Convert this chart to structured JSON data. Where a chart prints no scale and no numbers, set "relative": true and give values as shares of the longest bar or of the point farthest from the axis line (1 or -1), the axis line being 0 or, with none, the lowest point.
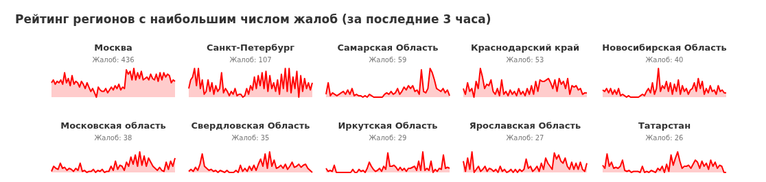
{
  "chart_data": [
    {
      "type": "other",
      "title": "Рейтинг регионов с наибольшим числом жалоб (за последние 3 часа)"
    },
    {
      "type": "area",
      "title": "Москва",
      "subtitle": "Жалоб: 436",
      "relative": true,
      "color": "#ff0000",
      "categories": [
        null,
        null,
        null,
        null,
        null,
        null,
        null,
        null,
        null,
        null,
        null,
        null,
        null,
        null,
        null,
        null,
        null,
        null,
        null,
        null,
        null,
        null,
        null,
        null,
        null,
        null,
        null,
        null,
        null,
        null,
        null,
        null,
        null,
        null,
        null,
        null,
        null,
        null,
        null,
        null,
        null,
        null,
        null,
        null,
        null,
        null,
        null,
        null,
        null,
        null,
        null,
        null,
        null,
        null,
        null,
        null,
        null,
        null,
        null,
        null,
        null,
        null,
        null,
        null,
        null,
        null,
        null
      ],
      "values": [
        0.5,
        0.6,
        0.45,
        0.55,
        0.5,
        0.6,
        0.45,
        0.85,
        0.5,
        0.65,
        0.4,
        0.75,
        0.45,
        0.55,
        0.5,
        0.35,
        0.55,
        0.45,
        0.3,
        0.5,
        0.35,
        0.2,
        0.3,
        0.15,
        0,
        0.35,
        0.25,
        0.2,
        0.2,
        0.3,
        0.15,
        0.25,
        0.35,
        0.25,
        0.4,
        0.3,
        0.45,
        0.25,
        0.35,
        0.3,
        0.95,
        0.8,
        0.9,
        0.6,
        1,
        0.6,
        0.85,
        0.65,
        0.9,
        0.6,
        0.65,
        0.7,
        0.6,
        0.8,
        0.65,
        0.6,
        0.8,
        0.55,
        0.85,
        0.6,
        0.85,
        0.7,
        0.8,
        0.75,
        0.5,
        0.6,
        0.55
      ]
    },
    {
      "type": "area",
      "title": "Санкт-Петербург",
      "subtitle": "Жалоб: 107",
      "relative": true,
      "color": "#ff0000",
      "categories": [
        null,
        null,
        null,
        null,
        null,
        null,
        null,
        null,
        null,
        null,
        null,
        null,
        null,
        null,
        null,
        null,
        null,
        null,
        null,
        null,
        null,
        null,
        null,
        null,
        null,
        null,
        null,
        null,
        null,
        null,
        null,
        null,
        null,
        null,
        null,
        null,
        null,
        null,
        null,
        null,
        null,
        null,
        null,
        null,
        null,
        null,
        null,
        null,
        null,
        null,
        null,
        null,
        null,
        null,
        null,
        null,
        null,
        null,
        null,
        null,
        null,
        null,
        null,
        null,
        null
      ],
      "values": [
        0.3,
        0.6,
        0.7,
        1,
        0.4,
        1,
        0.3,
        0.6,
        0.1,
        0.2,
        0.6,
        0.2,
        0.5,
        0.1,
        0.4,
        0.2,
        0.3,
        0.85,
        0.15,
        0.3,
        0.2,
        0.05,
        0.2,
        0.1,
        0.3,
        0.05,
        0.1,
        0.1,
        0,
        0.05,
        0.3,
        0.1,
        0.4,
        0.25,
        0.7,
        0.3,
        0.75,
        0.4,
        0.85,
        0.3,
        0.9,
        0.2,
        0.75,
        0.3,
        0.5,
        0.2,
        0.6,
        0.1,
        0.8,
        0.3,
        1,
        0.2,
        1,
        0.15,
        0.7,
        0.3,
        0.9,
        0,
        0.75,
        0.2,
        0.65,
        0.3,
        0.5,
        0.25,
        0.5
      ]
    },
    {
      "type": "area",
      "title": "Самарская Область",
      "subtitle": "Жалоб: 59",
      "relative": true,
      "color": "#ff0000",
      "categories": [
        null,
        null,
        null,
        null,
        null,
        null,
        null,
        null,
        null,
        null,
        null,
        null,
        null,
        null,
        null,
        null,
        null,
        null,
        null,
        null,
        null,
        null,
        null,
        null,
        null,
        null,
        null,
        null,
        null,
        null,
        null,
        null,
        null,
        null,
        null,
        null,
        null,
        null,
        null,
        null,
        null,
        null,
        null,
        null,
        null,
        null,
        null,
        null,
        null,
        null,
        null,
        null,
        null,
        null,
        null,
        null,
        null,
        null
      ],
      "values": [
        0.1,
        0.5,
        0.05,
        0.15,
        0.1,
        0.05,
        0.1,
        0.15,
        0.2,
        0.1,
        0.25,
        0.1,
        0.3,
        0.05,
        0.1,
        0.05,
        0.05,
        0,
        0.05,
        0,
        0.1,
        0.05,
        0,
        0,
        0,
        0,
        0,
        0.1,
        0.15,
        0.1,
        0.2,
        0.1,
        0.15,
        0.3,
        0.1,
        0.2,
        0.35,
        0.25,
        0.4,
        0.3,
        0.4,
        0.2,
        0.25,
        0.1,
        0.95,
        0.2,
        0.15,
        0.3,
        1,
        0.85,
        0.6,
        0.3,
        0.25,
        0.2,
        0.3,
        0.15,
        0.25,
        0.05
      ]
    },
    {
      "type": "area",
      "title": "Краснодарский край",
      "subtitle": "Жалоб: 53",
      "relative": true,
      "color": "#ff0000",
      "categories": [
        null,
        null,
        null,
        null,
        null,
        null,
        null,
        null,
        null,
        null,
        null,
        null,
        null,
        null,
        null,
        null,
        null,
        null,
        null,
        null,
        null,
        null,
        null,
        null,
        null,
        null,
        null,
        null,
        null,
        null,
        null,
        null,
        null,
        null,
        null,
        null,
        null,
        null,
        null,
        null,
        null,
        null,
        null,
        null,
        null,
        null,
        null,
        null,
        null,
        null,
        null,
        null,
        null,
        null,
        null,
        null,
        null,
        null,
        null
      ],
      "values": [
        0.3,
        0.1,
        0.5,
        0.2,
        0.3,
        0,
        0.55,
        0.3,
        1,
        0.7,
        0.3,
        0.45,
        0.4,
        0.6,
        0.2,
        0.1,
        0.3,
        0.05,
        0.6,
        0.1,
        0.2,
        0.05,
        0.25,
        0.1,
        0.2,
        0.05,
        0.3,
        0.1,
        0.2,
        0.05,
        0.3,
        0.1,
        0.4,
        0.1,
        0.55,
        0.2,
        0.6,
        0.55,
        0.55,
        0.6,
        0.65,
        0.5,
        0.3,
        0.6,
        0.2,
        0.65,
        0.45,
        0.55,
        0.3,
        0.65,
        0.1,
        0.4,
        0.35,
        0.4,
        0.25,
        0.3,
        0.1,
        0.15,
        0.15
      ]
    },
    {
      "type": "area",
      "title": "Новосибирская Область",
      "subtitle": "Жалоб: 40",
      "relative": true,
      "color": "#ff0000",
      "categories": [
        null,
        null,
        null,
        null,
        null,
        null,
        null,
        null,
        null,
        null,
        null,
        null,
        null,
        null,
        null,
        null,
        null,
        null,
        null,
        null,
        null,
        null,
        null,
        null,
        null,
        null,
        null,
        null,
        null,
        null,
        null,
        null,
        null,
        null,
        null,
        null,
        null,
        null,
        null,
        null,
        null,
        null,
        null,
        null,
        null,
        null,
        null,
        null,
        null,
        null,
        null,
        null,
        null,
        null,
        null,
        null,
        null,
        null,
        null,
        null,
        null,
        null,
        null
      ],
      "values": [
        0.25,
        0.2,
        0.3,
        0.15,
        0.3,
        0.1,
        0.25,
        0.1,
        0.3,
        0.05,
        0.1,
        0.05,
        0,
        0.05,
        0,
        0,
        0,
        0,
        0,
        0.05,
        0.1,
        0.05,
        0.2,
        0.3,
        0.15,
        0.5,
        0.1,
        0.3,
        1,
        0.2,
        0.4,
        0.3,
        0.55,
        0.2,
        0.5,
        0.1,
        0.45,
        0.2,
        0.6,
        0.1,
        0.4,
        0.2,
        0.3,
        0.1,
        0.25,
        0.3,
        0.5,
        0.2,
        0.65,
        0.3,
        0.55,
        0.1,
        0.3,
        0.15,
        0.4,
        0.2,
        0.25,
        0.1,
        0.4,
        0.2,
        0.25,
        0.15,
        0.15
      ]
    },
    {
      "type": "area",
      "title": "Московская область",
      "subtitle": "Жалоб: 38",
      "relative": true,
      "color": "#ff0000",
      "categories": [
        null,
        null,
        null,
        null,
        null,
        null,
        null,
        null,
        null,
        null,
        null,
        null,
        null,
        null,
        null,
        null,
        null,
        null,
        null,
        null,
        null,
        null,
        null,
        null,
        null,
        null,
        null,
        null,
        null,
        null,
        null,
        null,
        null,
        null,
        null,
        null,
        null,
        null,
        null,
        null,
        null,
        null,
        null,
        null,
        null,
        null,
        null,
        null,
        null,
        null,
        null,
        null,
        null,
        null,
        null,
        null,
        null
      ],
      "values": [
        0.05,
        0.3,
        0.2,
        0.15,
        0.45,
        0.2,
        0.25,
        0.1,
        0.2,
        0.15,
        0.05,
        0.2,
        0.1,
        0.45,
        0.05,
        0.1,
        0,
        0.05,
        0.05,
        0.15,
        0,
        0.1,
        0.05,
        0.15,
        0,
        0.05,
        0.05,
        0.3,
        0.1,
        0.55,
        0.15,
        0.35,
        0.3,
        0.1,
        0.5,
        0.3,
        0.75,
        0.4,
        0.85,
        0.3,
        1,
        0.35,
        0.8,
        0.3,
        0.7,
        0.5,
        0.3,
        0.2,
        0.1,
        0.25,
        0.1,
        0.05,
        0.5,
        0.15,
        0.55,
        0.3,
        0.7
      ]
    },
    {
      "type": "area",
      "title": "Свердловская Область",
      "subtitle": "Жалоб: 35",
      "relative": true,
      "color": "#ff0000",
      "categories": [
        null,
        null,
        null,
        null,
        null,
        null,
        null,
        null,
        null,
        null,
        null,
        null,
        null,
        null,
        null,
        null,
        null,
        null,
        null,
        null,
        null,
        null,
        null,
        null,
        null,
        null,
        null,
        null,
        null,
        null,
        null,
        null,
        null,
        null,
        null,
        null,
        null,
        null,
        null,
        null,
        null,
        null,
        null,
        null,
        null,
        null,
        null,
        null,
        null,
        null,
        null,
        null,
        null,
        null,
        null,
        null
      ],
      "values": [
        0.05,
        0.15,
        0.05,
        0.25,
        0.1,
        0.4,
        0.9,
        0.3,
        0.2,
        0.1,
        0.15,
        0.05,
        0.1,
        0,
        0.1,
        0.05,
        0,
        0.1,
        0,
        0,
        0,
        0.1,
        0,
        0.35,
        0.05,
        0.2,
        0.05,
        0.3,
        0.1,
        0.35,
        0.1,
        0.4,
        0.65,
        0.3,
        0.9,
        0.2,
        1,
        0.3,
        0.6,
        0.2,
        0.25,
        0.35,
        0.2,
        0.4,
        0.15,
        0.3,
        0.5,
        0.25,
        0.3,
        0.4,
        0.25,
        0.35,
        0.4,
        0.2,
        0.1,
        0
      ]
    },
    {
      "type": "area",
      "title": "Иркутская Область",
      "subtitle": "Жалоб: 29",
      "relative": true,
      "color": "#ff0000",
      "categories": [
        null,
        null,
        null,
        null,
        null,
        null,
        null,
        null,
        null,
        null,
        null,
        null,
        null,
        null,
        null,
        null,
        null,
        null,
        null,
        null,
        null,
        null,
        null,
        null,
        null,
        null,
        null,
        null,
        null,
        null,
        null,
        null,
        null,
        null,
        null,
        null,
        null,
        null,
        null,
        null,
        null,
        null,
        null,
        null,
        null,
        null,
        null,
        null,
        null,
        null,
        null,
        null,
        null,
        null,
        null,
        null,
        null,
        null,
        null,
        null,
        null
      ],
      "values": [
        0.2,
        0.05,
        0.1,
        0.05,
        0.35,
        0,
        0,
        0,
        0,
        0,
        0,
        0,
        0,
        0.15,
        0,
        0,
        0.15,
        0.05,
        0.1,
        0,
        0.2,
        0.5,
        0.3,
        0.15,
        0.05,
        0.1,
        0.2,
        0.05,
        0.3,
        0.15,
        0.95,
        0.3,
        0.3,
        0.35,
        0.25,
        0.1,
        0.25,
        0.1,
        0.2,
        0.05,
        0.2,
        0.2,
        0.25,
        0.3,
        0.1,
        0.55,
        0.1,
        1,
        0.1,
        0.2,
        0.1,
        0.55,
        0,
        0.15,
        0.05,
        0.2,
        0.15,
        0.85,
        0.2,
        0.25,
        0.2
      ]
    },
    {
      "type": "area",
      "title": "Ярославская Область",
      "subtitle": "Жалоб: 27",
      "relative": true,
      "color": "#ff0000",
      "categories": [
        null,
        null,
        null,
        null,
        null,
        null,
        null,
        null,
        null,
        null,
        null,
        null,
        null,
        null,
        null,
        null,
        null,
        null,
        null,
        null,
        null,
        null,
        null,
        null,
        null,
        null,
        null,
        null,
        null,
        null,
        null,
        null,
        null,
        null,
        null,
        null,
        null,
        null,
        null,
        null,
        null,
        null,
        null,
        null,
        null,
        null,
        null,
        null,
        null,
        null,
        null,
        null,
        null,
        null,
        null,
        null,
        null,
        null
      ],
      "values": [
        0.55,
        0.05,
        0.7,
        0.15,
        1,
        0,
        0.15,
        0.3,
        0.05,
        0.15,
        0.3,
        0.05,
        0.2,
        0.15,
        0.05,
        0.15,
        0,
        0.3,
        0.05,
        0.15,
        0,
        0.05,
        0.15,
        0,
        0.15,
        0,
        0.15,
        0.05,
        0.15,
        0.65,
        0.2,
        0.3,
        0.05,
        0.15,
        0.3,
        0.05,
        0.45,
        0.15,
        0.7,
        0.45,
        0.3,
        0.15,
        0.95,
        0.65,
        0.85,
        0.55,
        0.45,
        0.7,
        0.3,
        0.15,
        0.5,
        0.15,
        0.45,
        0.15,
        0.5,
        0.15,
        0.05,
        0.45
      ]
    },
    {
      "type": "area",
      "title": "Татарстан",
      "subtitle": "Жалоб: 26",
      "relative": true,
      "color": "#ff0000",
      "categories": [
        null,
        null,
        null,
        null,
        null,
        null,
        null,
        null,
        null,
        null,
        null,
        null,
        null,
        null,
        null,
        null,
        null,
        null,
        null,
        null,
        null,
        null,
        null,
        null,
        null,
        null,
        null,
        null,
        null,
        null,
        null,
        null,
        null,
        null,
        null,
        null,
        null,
        null,
        null,
        null,
        null,
        null,
        null,
        null,
        null,
        null,
        null,
        null,
        null,
        null,
        null,
        null,
        null,
        null,
        null,
        null,
        null
      ],
      "values": [
        0.35,
        0.2,
        0.9,
        0.3,
        0.5,
        0.2,
        0.25,
        0.2,
        0.3,
        0.6,
        0.1,
        0.05,
        0.1,
        0,
        0.05,
        0.05,
        0.05,
        0,
        0.3,
        0,
        0.05,
        0,
        0.1,
        0.05,
        0,
        0.2,
        0.1,
        0.3,
        0,
        0.4,
        0.05,
        0.85,
        0.35,
        0.7,
        1,
        0.55,
        0.2,
        0.3,
        0.3,
        0.35,
        0.2,
        0.4,
        0.6,
        0.5,
        0.2,
        0.55,
        0.3,
        0.45,
        0.15,
        0.6,
        0.3,
        0.5,
        0.2,
        0.35,
        0.3,
        0,
        0
      ]
    }
  ]
}
